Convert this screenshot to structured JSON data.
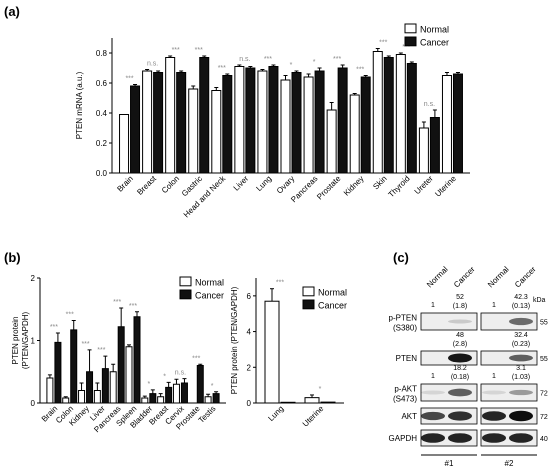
{
  "panels": {
    "a": "(a)",
    "b": "(b)",
    "c": "(c)"
  },
  "legend": {
    "normal": "Normal",
    "cancer": "Cancer"
  },
  "chart_data": [
    {
      "id": "a",
      "type": "bar",
      "ylabel": "PTEN mRNA (a.u.)",
      "ylim": [
        0,
        0.9
      ],
      "yticks": [
        0.0,
        0.2,
        0.4,
        0.6,
        0.8
      ],
      "categories": [
        "Brain",
        "Breast",
        "Colon",
        "Gastric",
        "Head and Neck",
        "Liver",
        "Lung",
        "Ovary",
        "Pancreas",
        "Prostate",
        "Kidney",
        "Skin",
        "Thyroid",
        "Ureter",
        "Uterine"
      ],
      "series": [
        {
          "name": "Normal",
          "values": [
            0.39,
            0.68,
            0.77,
            0.56,
            0.55,
            0.71,
            0.68,
            0.62,
            0.64,
            0.42,
            0.52,
            0.81,
            0.79,
            0.3,
            0.65
          ],
          "errors": [
            0.0,
            0.01,
            0.01,
            0.02,
            0.02,
            0.01,
            0.01,
            0.03,
            0.02,
            0.05,
            0.01,
            0.02,
            0.01,
            0.04,
            0.02
          ]
        },
        {
          "name": "Cancer",
          "values": [
            0.58,
            0.67,
            0.67,
            0.77,
            0.65,
            0.7,
            0.71,
            0.67,
            0.68,
            0.7,
            0.64,
            0.77,
            0.73,
            0.37,
            0.66
          ],
          "errors": [
            0.01,
            0.01,
            0.01,
            0.01,
            0.01,
            0.01,
            0.01,
            0.01,
            0.02,
            0.02,
            0.01,
            0.01,
            0.01,
            0.05,
            0.01
          ]
        }
      ],
      "significance": [
        "***",
        "n.s.",
        "***",
        "***",
        "***",
        "n.s.",
        "***",
        "*",
        "*",
        "***",
        "***",
        "***",
        "***",
        "n.s.",
        ""
      ]
    },
    {
      "id": "b1",
      "type": "bar",
      "ylabel": "PTEN protein (PTEN/GAPDH)",
      "ylim": [
        0,
        2
      ],
      "yticks": [
        0,
        1,
        2
      ],
      "categories": [
        "Brain",
        "Colon",
        "Kidney",
        "Liver",
        "Pancreas",
        "Spleen",
        "Bladder",
        "Breast",
        "Cervix",
        "Prostate",
        "Testis"
      ],
      "series": [
        {
          "name": "Normal",
          "values": [
            0.4,
            0.08,
            0.2,
            0.2,
            0.5,
            0.9,
            0.08,
            0.1,
            0.3,
            0.0,
            0.1
          ],
          "errors": [
            0.05,
            0.02,
            0.12,
            0.12,
            0.12,
            0.03,
            0.03,
            0.05,
            0.08,
            0.0,
            0.04
          ]
        },
        {
          "name": "Cancer",
          "values": [
            0.97,
            1.17,
            0.5,
            0.55,
            1.22,
            1.38,
            0.15,
            0.25,
            0.32,
            0.6,
            0.15
          ],
          "errors": [
            0.15,
            0.15,
            0.35,
            0.2,
            0.3,
            0.08,
            0.06,
            0.08,
            0.07,
            0.02,
            0.03
          ]
        }
      ],
      "significance": [
        "***",
        "***",
        "***",
        "***",
        "***",
        "***",
        "*",
        "*",
        "n.s.",
        "***",
        "*"
      ]
    },
    {
      "id": "b2",
      "type": "bar",
      "ylabel": "PTEN protein (PTEN/GAPDH)",
      "ylim": [
        0,
        7
      ],
      "yticks": [
        0,
        2,
        4,
        6
      ],
      "categories": [
        "Lung",
        "Uterine"
      ],
      "series": [
        {
          "name": "Normal",
          "values": [
            5.7,
            0.3
          ],
          "errors": [
            0.7,
            0.15
          ]
        },
        {
          "name": "Cancer",
          "values": [
            0.04,
            0.05
          ],
          "errors": [
            0.0,
            0.0
          ]
        }
      ],
      "significance": [
        "***",
        "*"
      ]
    }
  ],
  "blot": {
    "col_headers": [
      "Normal",
      "Cancer",
      "Normal",
      "Cancer"
    ],
    "kda": "kDa",
    "sample_labels": [
      "#1",
      "#2"
    ],
    "rows": [
      {
        "label": "p-PTEN\n(S380)",
        "line1": "p-PTEN",
        "line2": "(S380)",
        "mw": "55",
        "above": [
          "1",
          "52",
          "1",
          "42.3"
        ],
        "above2": [
          "",
          "(1.8)",
          "",
          "(0.13)"
        ]
      },
      {
        "label": "PTEN",
        "line1": "PTEN",
        "line2": "",
        "mw": "55",
        "above": [
          "",
          "48",
          "",
          "32.4"
        ],
        "above2": [
          "",
          "(2.8)",
          "",
          "(0.23)"
        ]
      },
      {
        "label": "p-AKT\n(S473)",
        "line1": "p-AKT",
        "line2": "(S473)",
        "mw": "72",
        "above": [
          "1",
          "18.2",
          "1",
          "3.1"
        ],
        "above2": [
          "",
          "(0.18)",
          "",
          "(1.03)"
        ]
      },
      {
        "label": "AKT",
        "line1": "AKT",
        "line2": "",
        "mw": "72",
        "above": [
          "",
          "",
          "",
          ""
        ],
        "above2": [
          "",
          "",
          "",
          ""
        ]
      },
      {
        "label": "GAPDH",
        "line1": "GAPDH",
        "line2": "",
        "mw": "40",
        "above": [
          "",
          "",
          "",
          ""
        ],
        "above2": [
          "",
          "",
          "",
          ""
        ]
      }
    ]
  }
}
